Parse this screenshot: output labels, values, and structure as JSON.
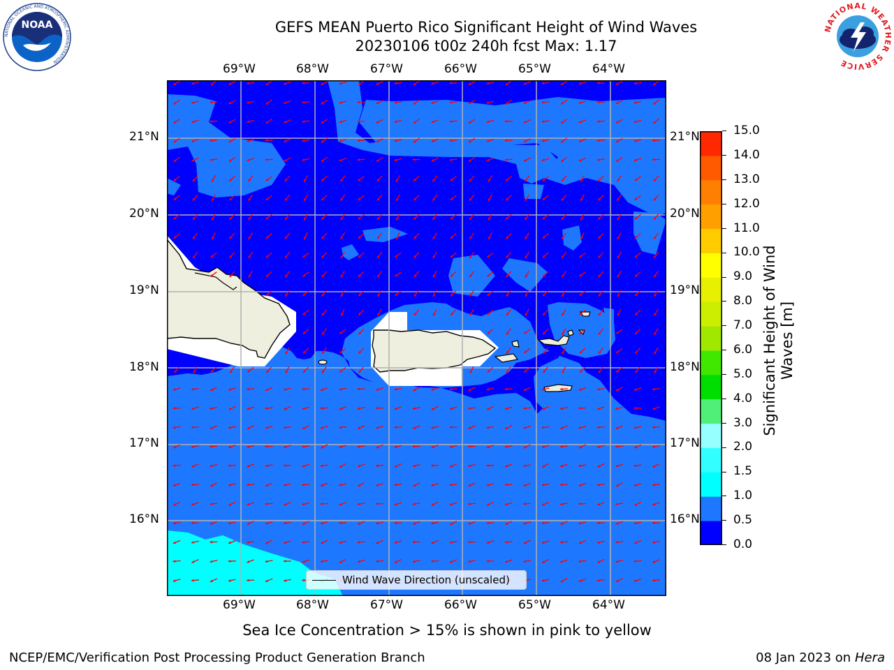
{
  "title": {
    "line1": "GEFS MEAN Puerto Rico Significant Height of Wind Waves",
    "line2": "20230106 t00z 240h fcst   Max: 1.17"
  },
  "axes": {
    "lon_labels": [
      "69°W",
      "68°W",
      "67°W",
      "66°W",
      "65°W",
      "64°W"
    ],
    "lat_labels": [
      "21°N",
      "20°N",
      "19°N",
      "18°N",
      "17°N",
      "16°N"
    ],
    "lon_range": [
      -70.0,
      -63.25
    ],
    "lat_range": [
      15.0,
      21.75
    ],
    "grid": true
  },
  "legend": {
    "label": "Wind Wave Direction (unscaled)",
    "placement": "bottom-center"
  },
  "colorbar": {
    "label_line1": "Significant Height of Wind",
    "label_line2": "Waves [m]",
    "ticks": [
      "0.0",
      "0.5",
      "1.0",
      "1.5",
      "2.0",
      "3.0",
      "4.0",
      "5.0",
      "6.0",
      "7.0",
      "8.0",
      "9.0",
      "10.0",
      "11.0",
      "12.0",
      "13.0",
      "14.0",
      "15.0"
    ],
    "colors": [
      "#0000ff",
      "#1e78ff",
      "#00ffff",
      "#32ffff",
      "#96ffff",
      "#50f078",
      "#00dd00",
      "#40e800",
      "#a0e800",
      "#ccee00",
      "#e6f000",
      "#ffff00",
      "#ffcc00",
      "#ffa000",
      "#ff8000",
      "#ff5a00",
      "#ff2800",
      "#ff0000"
    ]
  },
  "colors": {
    "level_0_0_5": "#0000ff",
    "level_0_5_1_0": "#1e78ff",
    "level_1_0_1_5": "#00ffff",
    "land": "#efefdf",
    "arrow": "#ff0000",
    "grid": "#b0b0b0"
  },
  "notes": {
    "sea_ice": "Sea Ice Concentration > 15% is shown in pink to yellow"
  },
  "footer": {
    "left": "NCEP/EMC/Verification Post Processing Product Generation Branch",
    "right_date": "08 Jan 2023 on ",
    "right_machine": "Hera"
  },
  "logos": {
    "noaa_text": "NOAA",
    "noaa_ring": "NATIONAL OCEANIC AND ATMOSPHERIC ADMINISTRATION",
    "noaa_bottom": "U.S. DEPARTMENT OF COMMERCE",
    "nws_ring": "NATIONAL WEATHER SERVICE"
  }
}
